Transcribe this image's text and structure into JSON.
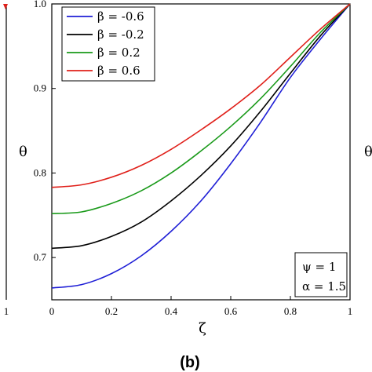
{
  "chart_data": {
    "type": "line",
    "xlabel": "ζ",
    "ylabel": "θ",
    "xlim": [
      0,
      1
    ],
    "ylim": [
      0.65,
      1.0
    ],
    "x_ticks": [
      "0",
      "0.2",
      "0.4",
      "0.6",
      "0.8",
      "1"
    ],
    "y_ticks": [
      "0.7",
      "0.8",
      "0.9",
      "1.0"
    ],
    "legend_position": "top-left",
    "series": [
      {
        "name": "β = -0.6",
        "color": "#1f1fd6",
        "x": [
          0,
          0.1,
          0.2,
          0.3,
          0.4,
          0.5,
          0.6,
          0.7,
          0.8,
          0.9,
          1.0
        ],
        "y": [
          0.664,
          0.668,
          0.681,
          0.702,
          0.731,
          0.767,
          0.811,
          0.86,
          0.913,
          0.958,
          1.0
        ]
      },
      {
        "name": "β = -0.2",
        "color": "#000000",
        "x": [
          0,
          0.1,
          0.2,
          0.3,
          0.4,
          0.5,
          0.6,
          0.7,
          0.8,
          0.9,
          1.0
        ],
        "y": [
          0.711,
          0.714,
          0.725,
          0.742,
          0.767,
          0.797,
          0.832,
          0.873,
          0.918,
          0.962,
          1.0
        ]
      },
      {
        "name": "β = 0.2",
        "color": "#1a9a1a",
        "x": [
          0,
          0.1,
          0.2,
          0.3,
          0.4,
          0.5,
          0.6,
          0.7,
          0.8,
          0.9,
          1.0
        ],
        "y": [
          0.752,
          0.754,
          0.764,
          0.779,
          0.8,
          0.826,
          0.855,
          0.888,
          0.926,
          0.966,
          1.0
        ]
      },
      {
        "name": "β = 0.6",
        "color": "#e0201a",
        "x": [
          0,
          0.1,
          0.2,
          0.3,
          0.4,
          0.5,
          0.6,
          0.7,
          0.8,
          0.9,
          1.0
        ],
        "y": [
          0.783,
          0.786,
          0.795,
          0.809,
          0.828,
          0.851,
          0.876,
          0.904,
          0.937,
          0.97,
          1.0
        ]
      }
    ],
    "annotations": [
      "ψ = 1",
      "α = 1.5"
    ],
    "panel_label": "(b)",
    "neighbor_panel": {
      "left_tick": "1",
      "right_axis_label": "θ"
    }
  }
}
